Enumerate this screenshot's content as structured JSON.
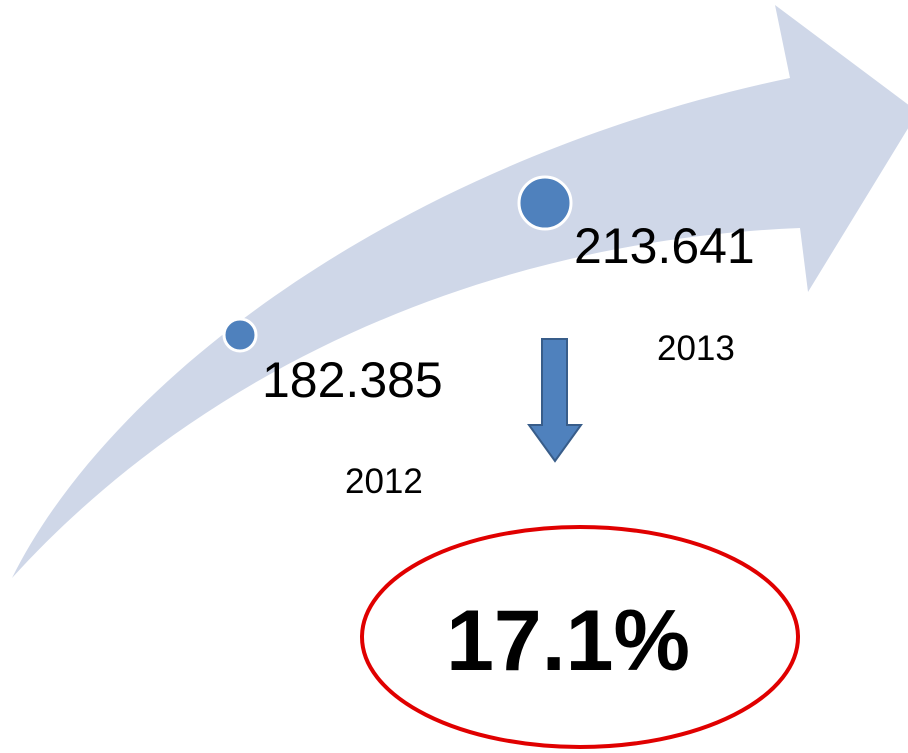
{
  "points": [
    {
      "value": "182.385",
      "year": "2012"
    },
    {
      "value": "213.641",
      "year": "2013"
    }
  ],
  "change": "17.1%"
}
